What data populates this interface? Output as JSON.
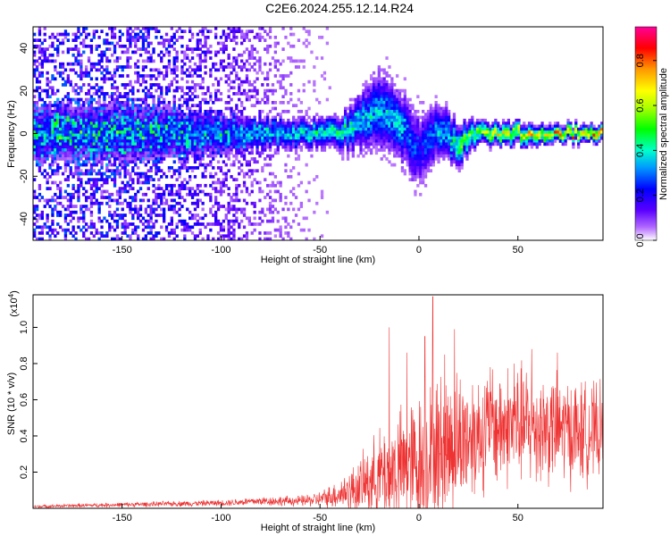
{
  "title": "C2E6.2024.255.12.14.R24",
  "chart_data": [
    {
      "type": "heatmap",
      "xlabel": "Height of straight line (km)",
      "ylabel": "Frequency (Hz)",
      "xlim": [
        -195,
        93
      ],
      "ylim": [
        -50,
        50
      ],
      "x_ticks": [
        -150,
        -100,
        -50,
        0,
        50
      ],
      "y_ticks": [
        -40,
        -20,
        0,
        20,
        40
      ],
      "colorbar": {
        "label": "Normalized spectral amplitude",
        "range": [
          0,
          0.95
        ],
        "ticks": [
          0.0,
          0.2,
          0.4,
          0.6,
          0.8
        ],
        "tick_labels": [
          "0.0",
          "0.2",
          "0.4",
          "0.6",
          "0.8"
        ],
        "colormap": "rainbow"
      },
      "band_profile": {
        "x": [
          -195,
          -150,
          -120,
          -100,
          -80,
          -60,
          -40,
          -30,
          -20,
          -10,
          0,
          10,
          20,
          30,
          50,
          70,
          93
        ],
        "center_hz": [
          0,
          0,
          0,
          0,
          0,
          0,
          0,
          5,
          12,
          5,
          -8,
          2,
          -5,
          0,
          0,
          0,
          0
        ],
        "half_width_hz": [
          12,
          12,
          10,
          8,
          6,
          5,
          6,
          10,
          14,
          12,
          14,
          10,
          8,
          4,
          4,
          3,
          3
        ],
        "peak_amplitude": [
          0.3,
          0.3,
          0.32,
          0.35,
          0.4,
          0.45,
          0.5,
          0.45,
          0.4,
          0.45,
          0.25,
          0.4,
          0.55,
          0.7,
          0.8,
          0.85,
          0.85
        ],
        "noise_level": [
          0.18,
          0.18,
          0.15,
          0.12,
          0.08,
          0.04,
          0.03,
          0.03,
          0.03,
          0.03,
          0.03,
          0.02,
          0.02,
          0.02,
          0.02,
          0.02,
          0.02
        ]
      },
      "grid": false
    },
    {
      "type": "line",
      "xlabel": "Height of straight line (km)",
      "ylabel": "SNR (10 * v/v)",
      "multiplier_label": "(x10",
      "multiplier_exponent": "4",
      "multiplier_close": ")",
      "xlim": [
        -195,
        93
      ],
      "ylim": [
        0,
        1.18
      ],
      "x_ticks": [
        -150,
        -100,
        -50,
        0,
        50
      ],
      "y_ticks": [
        0.2,
        0.4,
        0.6,
        0.8,
        1.0
      ],
      "y_tick_labels": [
        "0.2",
        "0.4",
        "0.6",
        "0.8",
        "1.0"
      ],
      "color": "#ee3333",
      "envelope": {
        "x": [
          -195,
          -150,
          -100,
          -80,
          -60,
          -50,
          -40,
          -30,
          -20,
          -10,
          0,
          10,
          20,
          30,
          40,
          50,
          60,
          70,
          80,
          93
        ],
        "baseline": [
          0.01,
          0.02,
          0.03,
          0.04,
          0.04,
          0.05,
          0.08,
          0.12,
          0.18,
          0.22,
          0.25,
          0.32,
          0.38,
          0.42,
          0.45,
          0.46,
          0.45,
          0.44,
          0.42,
          0.42
        ],
        "spread": [
          0.01,
          0.015,
          0.02,
          0.03,
          0.035,
          0.05,
          0.1,
          0.18,
          0.3,
          0.38,
          0.45,
          0.5,
          0.45,
          0.4,
          0.4,
          0.4,
          0.38,
          0.36,
          0.34,
          0.3
        ]
      },
      "peaks": [
        {
          "x": -15,
          "y": 1.0
        },
        {
          "x": -6,
          "y": 0.86
        },
        {
          "x": 7,
          "y": 1.17
        },
        {
          "x": 3,
          "y": 0.95
        },
        {
          "x": 18,
          "y": 0.99
        },
        {
          "x": 13,
          "y": 0.85
        },
        {
          "x": 57,
          "y": 0.88
        },
        {
          "x": 70,
          "y": 0.86
        },
        {
          "x": 48,
          "y": 0.8
        },
        {
          "x": 36,
          "y": 0.78
        }
      ],
      "grid": false
    }
  ]
}
